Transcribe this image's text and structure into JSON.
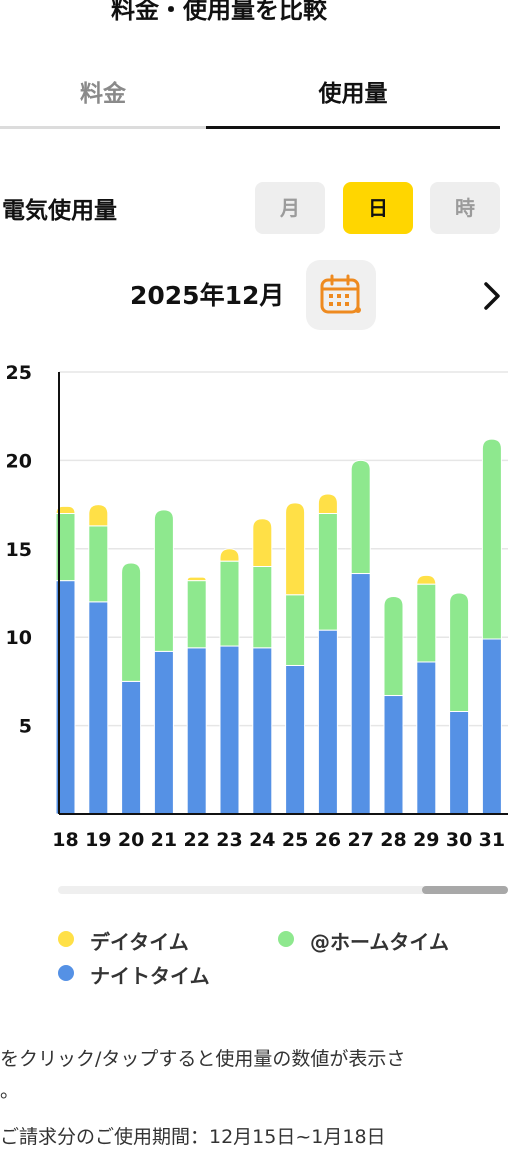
{
  "header": {
    "title": "料金・使用量を比較"
  },
  "tabs": [
    {
      "label": "料金",
      "active": false
    },
    {
      "label": "使用量",
      "active": true
    }
  ],
  "section": {
    "label": "電気使用量"
  },
  "granularity": {
    "options": [
      "月",
      "日",
      "時"
    ],
    "selected": "日"
  },
  "period": {
    "label": "2025年12月"
  },
  "icons": {
    "calendar": "calendar-icon",
    "next": "chevron-right-icon"
  },
  "colors": {
    "day_time": "#ffe047",
    "home_time": "#8ee88e",
    "night_time": "#5591e5",
    "accent": "#ffd600"
  },
  "chart_data": {
    "type": "bar",
    "stacked": true,
    "categories": [
      "18",
      "19",
      "20",
      "21",
      "22",
      "23",
      "24",
      "25",
      "26",
      "27",
      "28",
      "29",
      "30",
      "31"
    ],
    "series": [
      {
        "name": "ナイトタイム",
        "color": "#5591e5",
        "values": [
          13.2,
          12.0,
          7.5,
          9.2,
          9.4,
          9.5,
          9.4,
          8.4,
          10.4,
          13.6,
          6.7,
          8.6,
          5.8,
          9.9
        ]
      },
      {
        "name": "@ホームタイム",
        "color": "#8ee88e",
        "values": [
          3.8,
          4.3,
          6.7,
          8.0,
          3.8,
          4.8,
          4.6,
          4.0,
          6.6,
          6.4,
          5.6,
          4.4,
          6.7,
          11.3
        ]
      },
      {
        "name": "デイタイム",
        "color": "#ffe047",
        "values": [
          0.4,
          1.2,
          0.0,
          0.0,
          0.2,
          0.7,
          2.7,
          5.2,
          1.1,
          0.0,
          0.0,
          0.5,
          0.0,
          0.0
        ]
      }
    ],
    "yticks": [
      5,
      10,
      15,
      20,
      25
    ],
    "ylim": [
      0,
      25
    ],
    "grid": true,
    "legend": "bottom"
  },
  "legend": [
    {
      "label": "デイタイム",
      "color": "#ffe047"
    },
    {
      "label": "@ホームタイム",
      "color": "#8ee88e"
    },
    {
      "label": "ナイトタイム",
      "color": "#5591e5"
    }
  ],
  "notes": {
    "line1": "をクリック/タップすると使用量の数値が表示さ",
    "line2": "。",
    "line3": "ご請求分のご使用期間：12月15日~1月18日"
  }
}
